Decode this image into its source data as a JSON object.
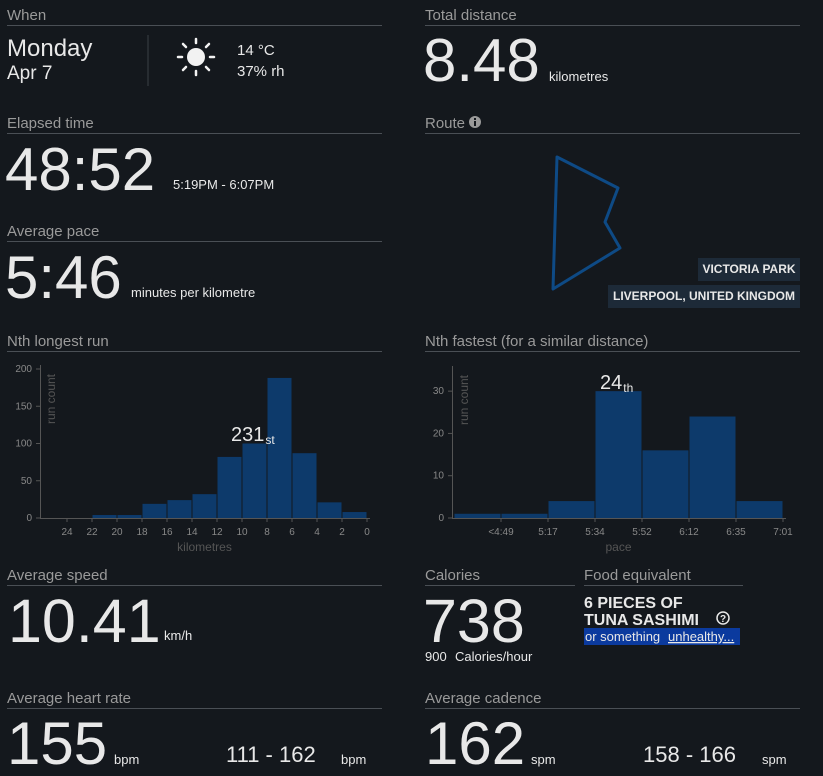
{
  "when": {
    "label": "When",
    "day": "Monday",
    "date": "Apr 7",
    "temperature": "14 °C",
    "humidity": "37% rh"
  },
  "total_distance": {
    "label": "Total distance",
    "value": "8.48",
    "unit": "kilometres"
  },
  "elapsed_time": {
    "label": "Elapsed time",
    "value": "48:52",
    "range": "5:19PM - 6:07PM"
  },
  "route": {
    "label": "Route",
    "places": [
      "VICTORIA PARK",
      "LIVERPOOL, UNITED KINGDOM"
    ]
  },
  "average_pace": {
    "label": "Average pace",
    "value": "5:46",
    "unit": "minutes per kilometre"
  },
  "chart_data": [
    {
      "type": "histogram",
      "title": "Nth longest run",
      "bins": [
        24,
        22,
        20,
        18,
        16,
        14,
        12,
        10,
        8,
        6,
        4,
        2,
        0
      ],
      "values": [
        0,
        4,
        4,
        19,
        24,
        32,
        82,
        100,
        188,
        87,
        21,
        8
      ],
      "xlim": [
        26,
        0
      ],
      "xticks": [
        24,
        22,
        20,
        18,
        16,
        14,
        12,
        10,
        8,
        6,
        4,
        2,
        0
      ],
      "ylim": [
        0,
        200
      ],
      "yticks": [
        0,
        50,
        100,
        150,
        200
      ],
      "xlabel": "kilometres",
      "ylabel": "run count",
      "color": "#0d3a6b",
      "annotation": "231",
      "annotation_suffix": "st"
    },
    {
      "type": "histogram",
      "title": "Nth fastest (for a similar distance)",
      "bins": [
        null,
        "<4:49",
        "5:17",
        "5:34",
        "5:52",
        "6:12",
        "6:35",
        "7:01"
      ],
      "values": [
        1,
        1,
        4,
        30,
        16,
        24,
        4
      ],
      "ylim": [
        0,
        35
      ],
      "yticks": [
        0,
        10,
        20,
        30
      ],
      "xlabel": "pace",
      "ylabel": "run count",
      "color": "#0d3a6b",
      "annotation": "24",
      "annotation_suffix": "th"
    }
  ],
  "average_speed": {
    "label": "Average speed",
    "value": "10.41",
    "unit": "km/h"
  },
  "calories": {
    "label": "Calories",
    "value": "738",
    "per_hour": "900",
    "per_hour_unit": "Calories/hour"
  },
  "food_equivalent": {
    "label": "Food equivalent",
    "line1": "6 PIECES OF",
    "line2": "TUNA SASHIMI",
    "prefix": "or something",
    "link": "unhealthy..."
  },
  "average_heart_rate": {
    "label": "Average heart rate",
    "value": "155",
    "unit": "bpm",
    "range": "111 - 162",
    "range_unit": "bpm"
  },
  "average_cadence": {
    "label": "Average cadence",
    "value": "162",
    "unit": "spm",
    "range": "158 - 166",
    "range_unit": "spm"
  }
}
